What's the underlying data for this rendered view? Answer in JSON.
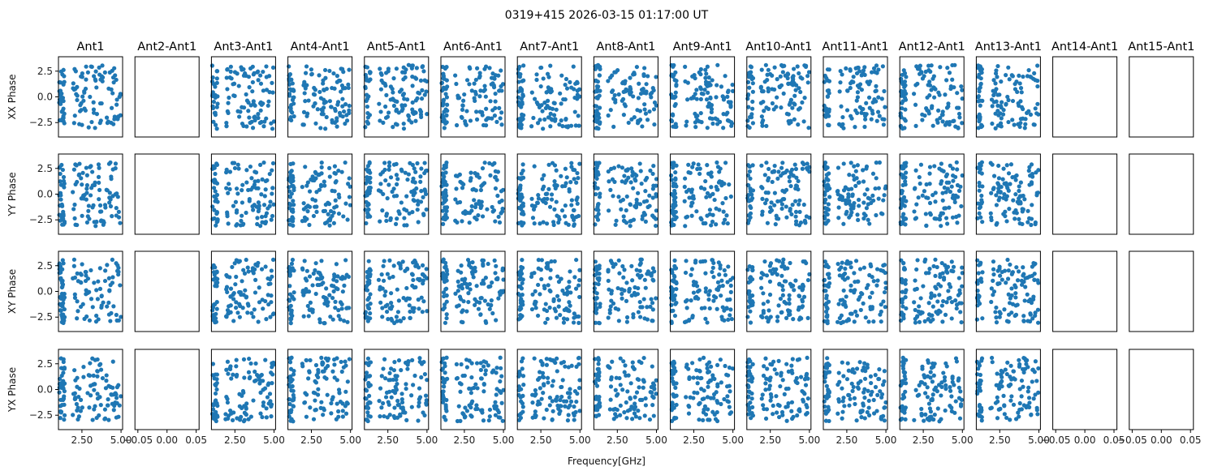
{
  "chart_data": {
    "type": "scatter",
    "title": "0319+415 2026-03-15 01:17:00 UT",
    "xlabel": "Frequency[GHz]",
    "columns": [
      "Ant1",
      "Ant2-Ant1",
      "Ant3-Ant1",
      "Ant4-Ant1",
      "Ant5-Ant1",
      "Ant6-Ant1",
      "Ant7-Ant1",
      "Ant8-Ant1",
      "Ant9-Ant1",
      "Ant10-Ant1",
      "Ant11-Ant1",
      "Ant12-Ant1",
      "Ant13-Ant1",
      "Ant14-Ant1",
      "Ant15-Ant1"
    ],
    "rows": [
      "XX Phase",
      "YY Phase",
      "XY Phase",
      "YX Phase"
    ],
    "xlim": [
      1.0,
      5.1
    ],
    "ylim": [
      -3.9,
      3.9
    ],
    "xticks": [
      2.5,
      5.0
    ],
    "xtick_labels": [
      "2.50",
      "5.00"
    ],
    "yticks": [
      2.5,
      0.0,
      -2.5
    ],
    "ytick_labels": [
      "2.5",
      "0.0",
      "−2.5"
    ],
    "empty_xlim": [
      -0.055,
      0.055
    ],
    "empty_xticks": [
      -0.05,
      0.0,
      0.05
    ],
    "empty_xtick_labels": [
      "−0.05",
      "0.00",
      "0.05"
    ],
    "empty_columns": [
      1,
      13,
      14
    ],
    "marker_color": "#1f77b4",
    "points_per_panel": 120,
    "series": [
      {
        "name": "Ant1",
        "x": [
          1.1,
          1.2,
          1.3,
          1.2,
          1.1,
          1.4,
          1.3,
          1.2,
          1.5,
          1.6,
          2.0,
          2.3,
          2.6,
          2.9,
          3.2,
          3.5,
          3.8,
          4.1,
          4.4,
          4.7,
          5.0,
          2.4,
          2.8,
          3.3,
          3.7,
          4.2,
          4.6,
          1.2,
          1.3,
          1.1
        ],
        "y": [
          2.8,
          1.5,
          -0.5,
          -2.5,
          -3.0,
          0.5,
          -1.6,
          2.2,
          1.3,
          -2.9,
          -0.2,
          1.2,
          -2.6,
          0.4,
          2.5,
          -1.1,
          0.8,
          -2.4,
          1.9,
          -0.6,
          -2.7,
          -1.8,
          2.9,
          -0.9,
          1.6,
          -2.0,
          0.2,
          -1.2,
          2.0,
          0.0
        ]
      }
    ]
  }
}
